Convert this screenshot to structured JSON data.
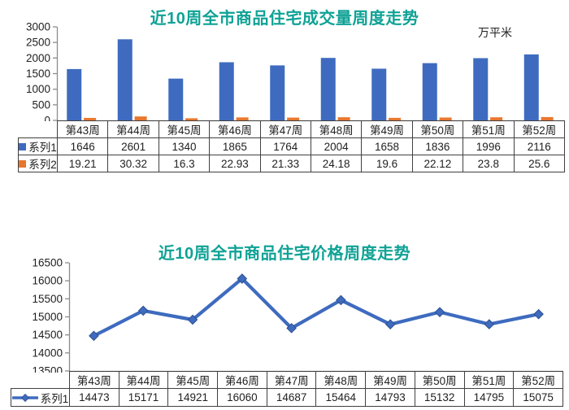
{
  "colors": {
    "title": "#0FA295",
    "bar_blue": "#3E6BBF",
    "bar_orange": "#E8772E",
    "line_blue": "#3E6BBF",
    "marker_stroke": "#2E4F8E",
    "axis": "#8C8C8C",
    "text": "#1f1f1f",
    "table_border": "#404040"
  },
  "chart_data": [
    {
      "type": "bar",
      "title": "近10周全市商品住宅成交量周度走势",
      "unit_label": "万平米",
      "categories": [
        "第43周",
        "第44周",
        "第45周",
        "第46周",
        "第47周",
        "第48周",
        "第49周",
        "第50周",
        "第51周",
        "第52周"
      ],
      "series": [
        {
          "name": "系列1",
          "color": "#3E6BBF",
          "values": [
            1646,
            2601,
            1340,
            1865,
            1764,
            2004,
            1658,
            1836,
            1996,
            2116
          ]
        },
        {
          "name": "系列2",
          "color": "#E8772E",
          "values": [
            19.21,
            30.32,
            16.3,
            22.93,
            21.33,
            24.18,
            19.6,
            22.12,
            23.8,
            25.6
          ]
        }
      ],
      "y_axis": {
        "min": 0,
        "max": 3000,
        "step": 500
      },
      "grid": false,
      "legend_position": "table-left"
    },
    {
      "type": "line",
      "title": "近10周全市商品住宅价格周度走势",
      "unit_label": "",
      "categories": [
        "第43周",
        "第44周",
        "第45周",
        "第46周",
        "第47周",
        "第48周",
        "第49周",
        "第50周",
        "第51周",
        "第52周"
      ],
      "series": [
        {
          "name": "系列1",
          "color": "#3E6BBF",
          "values": [
            14473,
            15171,
            14921,
            16060,
            14687,
            15464,
            14793,
            15132,
            14795,
            15075
          ]
        }
      ],
      "y_axis": {
        "min": 13500,
        "max": 16500,
        "step": 500
      },
      "grid": false,
      "legend_position": "table-left"
    }
  ]
}
